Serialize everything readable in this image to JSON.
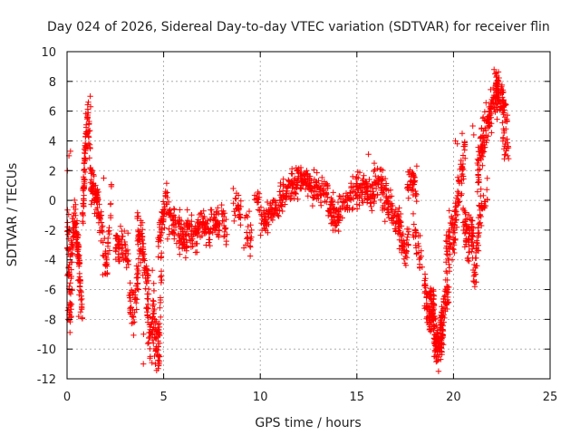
{
  "chart_data": {
    "type": "scatter",
    "title": "Day 024 of 2026, Sidereal Day-to-day VTEC variation (SDTVAR) for receiver flin",
    "xlabel": "GPS time / hours",
    "ylabel": "SDTVAR / TECUs",
    "xlim": [
      0,
      25
    ],
    "ylim": [
      -12,
      10
    ],
    "xticks": [
      "0",
      "5",
      "10",
      "15",
      "20",
      "25"
    ],
    "yticks": [
      "-12",
      "-10",
      "-8",
      "-6",
      "-4",
      "-2",
      "0",
      "2",
      "4",
      "6",
      "8",
      "10"
    ],
    "grid": true,
    "marker": "+",
    "series": [
      {
        "name": "SDTVAR",
        "color": "#ff0000",
        "segments": [
          {
            "x0": 0.0,
            "x1": 0.3,
            "base": [
              -2.0,
              -6.5,
              -3.0
            ],
            "spread": 3.0,
            "n": 70
          },
          {
            "x0": 0.3,
            "x1": 0.8,
            "base": [
              -2.0,
              -1.5,
              -4.5,
              -7.5
            ],
            "spread": 1.5,
            "n": 90
          },
          {
            "x0": 0.8,
            "x1": 1.2,
            "base": [
              -1.0,
              3.0,
              5.5,
              3.5
            ],
            "spread": 1.6,
            "n": 90
          },
          {
            "x0": 1.2,
            "x1": 1.6,
            "base": [
              1.5,
              0.5,
              0.0
            ],
            "spread": 1.3,
            "n": 60
          },
          {
            "x0": 1.6,
            "x1": 2.3,
            "base": [
              -0.5,
              -2.5,
              -4.5,
              0.5
            ],
            "spread": 1.2,
            "n": 60
          },
          {
            "x0": 2.5,
            "x1": 3.2,
            "base": [
              -3.0,
              -3.0,
              -4.0
            ],
            "spread": 1.2,
            "n": 60
          },
          {
            "x0": 3.2,
            "x1": 3.7,
            "base": [
              -6.5,
              -7.5,
              -5.5
            ],
            "spread": 1.2,
            "n": 50
          },
          {
            "x0": 3.6,
            "x1": 4.2,
            "base": [
              -2.5,
              -3.0,
              -5.0
            ],
            "spread": 1.6,
            "n": 70
          },
          {
            "x0": 4.1,
            "x1": 4.5,
            "base": [
              -6.0,
              -9.5,
              -7.0
            ],
            "spread": 2.0,
            "n": 50
          },
          {
            "x0": 4.4,
            "x1": 4.9,
            "base": [
              -5.0,
              -9.5,
              -10.5,
              -4.0
            ],
            "spread": 2.0,
            "n": 70
          },
          {
            "x0": 4.7,
            "x1": 5.2,
            "base": [
              -3.0,
              -1.0,
              0.3
            ],
            "spread": 1.0,
            "n": 50
          },
          {
            "x0": 5.2,
            "x1": 6.2,
            "base": [
              -1.2,
              -1.8,
              -2.8
            ],
            "spread": 1.2,
            "n": 90
          },
          {
            "x0": 6.2,
            "x1": 7.4,
            "base": [
              -2.0,
              -2.5,
              -1.5,
              -2.5
            ],
            "spread": 1.2,
            "n": 100
          },
          {
            "x0": 7.4,
            "x1": 7.9,
            "base": [
              -1.0,
              -1.5,
              -2.0
            ],
            "spread": 1.0,
            "n": 40
          },
          {
            "x0": 8.0,
            "x1": 8.3,
            "base": [
              -1.0,
              -2.0,
              -3.0
            ],
            "spread": 1.2,
            "n": 20
          },
          {
            "x0": 8.6,
            "x1": 9.0,
            "base": [
              -0.5,
              -0.3,
              -0.8
            ],
            "spread": 0.8,
            "n": 25
          },
          {
            "x0": 9.2,
            "x1": 9.6,
            "base": [
              -1.5,
              -2.0,
              -3.0
            ],
            "spread": 1.2,
            "n": 20
          },
          {
            "x0": 9.7,
            "x1": 10.0,
            "base": [
              0.5,
              0.2,
              0.0
            ],
            "spread": 0.6,
            "n": 15
          },
          {
            "x0": 10.0,
            "x1": 11.0,
            "base": [
              -1.5,
              -1.0,
              -0.5
            ],
            "spread": 1.0,
            "n": 70
          },
          {
            "x0": 11.0,
            "x1": 12.0,
            "base": [
              0.0,
              0.8,
              1.3
            ],
            "spread": 1.0,
            "n": 80
          },
          {
            "x0": 12.0,
            "x1": 13.5,
            "base": [
              1.5,
              1.2,
              0.8,
              0.5
            ],
            "spread": 1.0,
            "n": 110
          },
          {
            "x0": 13.5,
            "x1": 14.8,
            "base": [
              -0.5,
              -1.0,
              -0.3,
              0.3
            ],
            "spread": 1.0,
            "n": 100
          },
          {
            "x0": 14.8,
            "x1": 15.8,
            "base": [
              0.5,
              0.8,
              0.3
            ],
            "spread": 1.1,
            "n": 80
          },
          {
            "x0": 15.8,
            "x1": 16.7,
            "base": [
              0.8,
              1.5,
              0.5,
              -0.5
            ],
            "spread": 1.3,
            "n": 80
          },
          {
            "x0": 16.7,
            "x1": 17.3,
            "base": [
              -0.5,
              -1.5,
              -2.0
            ],
            "spread": 1.3,
            "n": 50
          },
          {
            "x0": 17.3,
            "x1": 17.7,
            "base": [
              -2.5,
              -3.5,
              -2.0
            ],
            "spread": 1.2,
            "n": 35
          },
          {
            "x0": 17.6,
            "x1": 18.1,
            "base": [
              1.0,
              1.5,
              0.5
            ],
            "spread": 1.0,
            "n": 40
          },
          {
            "x0": 17.9,
            "x1": 18.4,
            "base": [
              -1.5,
              -3.0,
              -4.0
            ],
            "spread": 1.4,
            "n": 25
          },
          {
            "x0": 18.5,
            "x1": 19.0,
            "base": [
              -6.0,
              -8.0,
              -7.0
            ],
            "spread": 1.5,
            "n": 80
          },
          {
            "x0": 18.8,
            "x1": 19.5,
            "base": [
              -6.5,
              -9.0,
              -10.0,
              -8.0
            ],
            "spread": 1.5,
            "n": 110
          },
          {
            "x0": 19.3,
            "x1": 19.8,
            "base": [
              -8.5,
              -7.0,
              -5.0
            ],
            "spread": 1.5,
            "n": 60
          },
          {
            "x0": 19.6,
            "x1": 20.1,
            "base": [
              -4.0,
              -2.0,
              -2.5
            ],
            "spread": 1.5,
            "n": 50
          },
          {
            "x0": 20.0,
            "x1": 20.6,
            "base": [
              -2.5,
              0.0,
              1.5,
              3.5
            ],
            "spread": 1.5,
            "n": 60
          },
          {
            "x0": 20.5,
            "x1": 21.0,
            "base": [
              -1.0,
              -3.0,
              -1.5
            ],
            "spread": 1.6,
            "n": 60
          },
          {
            "x0": 20.9,
            "x1": 21.3,
            "base": [
              -2.0,
              -4.5,
              -2.5
            ],
            "spread": 1.5,
            "n": 40
          },
          {
            "x0": 21.2,
            "x1": 21.8,
            "base": [
              1.0,
              3.5,
              4.5,
              5.5
            ],
            "spread": 1.6,
            "n": 70
          },
          {
            "x0": 21.3,
            "x1": 21.8,
            "base": [
              -1.0,
              -0.5,
              0.5
            ],
            "spread": 1.2,
            "n": 30
          },
          {
            "x0": 21.8,
            "x1": 22.3,
            "base": [
              5.5,
              6.5,
              7.0
            ],
            "spread": 1.3,
            "n": 60
          },
          {
            "x0": 22.2,
            "x1": 22.8,
            "base": [
              7.5,
              7.2,
              6.8,
              5.0
            ],
            "spread": 1.2,
            "n": 70
          },
          {
            "x0": 22.5,
            "x1": 22.85,
            "base": [
              5.0,
              3.5,
              3.0
            ],
            "spread": 1.0,
            "n": 20
          }
        ],
        "points": [
          [
            0.02,
            2.0
          ],
          [
            0.05,
            -8.0
          ],
          [
            0.1,
            3.0
          ],
          [
            0.18,
            3.3
          ],
          [
            0.22,
            -7.8
          ],
          [
            1.2,
            7.0
          ],
          [
            1.22,
            6.3
          ],
          [
            0.6,
            -7.8
          ],
          [
            0.7,
            -7.5
          ],
          [
            1.85,
            -5.0
          ],
          [
            1.9,
            1.5
          ],
          [
            3.05,
            -4.0
          ],
          [
            3.15,
            -2.2
          ],
          [
            3.95,
            -11.0
          ],
          [
            3.96,
            -9.0
          ],
          [
            4.78,
            -10.8
          ],
          [
            4.8,
            -10.5
          ],
          [
            5.1,
            0.6
          ],
          [
            7.8,
            -0.5
          ],
          [
            7.85,
            -2.0
          ],
          [
            8.6,
            0.8
          ],
          [
            8.7,
            -1.0
          ],
          [
            9.15,
            -3.2
          ],
          [
            9.25,
            -3.0
          ],
          [
            12.1,
            2.2
          ],
          [
            12.4,
            2.0
          ],
          [
            15.6,
            3.1
          ],
          [
            15.9,
            2.5
          ],
          [
            17.8,
            1.6
          ],
          [
            18.1,
            2.3
          ],
          [
            18.2,
            -3.5
          ],
          [
            18.25,
            -4.5
          ],
          [
            19.05,
            -10.5
          ],
          [
            19.15,
            -10.8
          ],
          [
            19.4,
            -10.2
          ],
          [
            20.1,
            4.0
          ],
          [
            20.2,
            3.8
          ],
          [
            20.45,
            4.5
          ],
          [
            21.1,
            -5.8
          ],
          [
            21.15,
            -5.5
          ],
          [
            21.0,
            5.0
          ],
          [
            21.05,
            4.4
          ],
          [
            22.1,
            8.8
          ],
          [
            22.15,
            8.5
          ],
          [
            22.2,
            7.9
          ],
          [
            22.8,
            3.0
          ],
          [
            22.85,
            2.8
          ]
        ]
      }
    ]
  }
}
